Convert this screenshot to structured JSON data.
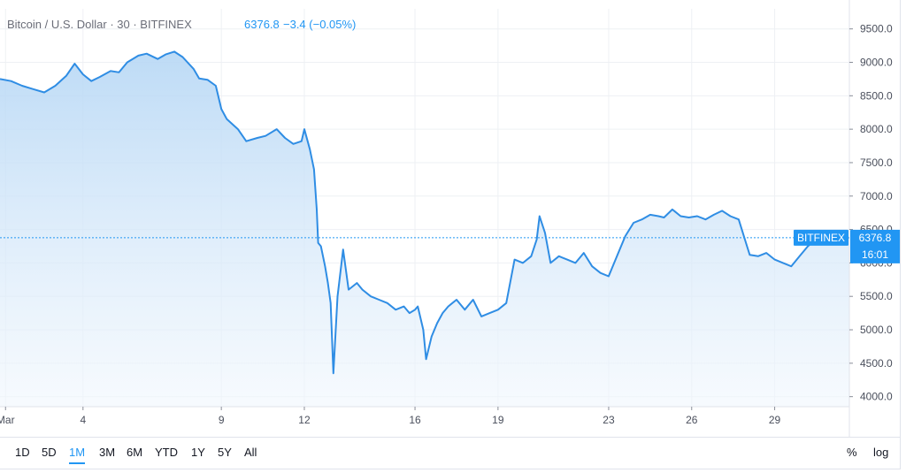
{
  "legend": {
    "symbol": "Bitcoin / U.S. Dollar · 30 · BITFINEX",
    "last_price": "6376.8",
    "change": "−3.4 (−0.05%)"
  },
  "price_labels": {
    "exchange_tag": "BITFINEX",
    "last_price": "6376.8",
    "countdown": "16:01"
  },
  "range_buttons": [
    {
      "label": "1D",
      "active": false
    },
    {
      "label": "5D",
      "active": false
    },
    {
      "label": "1M",
      "active": true
    },
    {
      "label": "3M",
      "active": false
    },
    {
      "label": "6M",
      "active": false
    },
    {
      "label": "YTD",
      "active": false
    },
    {
      "label": "1Y",
      "active": false
    },
    {
      "label": "5Y",
      "active": false
    },
    {
      "label": "All",
      "active": false
    }
  ],
  "scale_buttons": {
    "percent": "%",
    "log": "log"
  },
  "colors": {
    "line": "#2f8de4",
    "area_top": "#b6d7f5",
    "area_bottom": "#f1f7fd",
    "tag": "#2196f3",
    "grid": "#eef0f4"
  },
  "chart_data": {
    "type": "area",
    "title": "Bitcoin / U.S. Dollar · 30 · BITFINEX",
    "xlabel": "",
    "ylabel": "",
    "x_unit": "day of month (March)",
    "ylim": [
      3850,
      9800
    ],
    "xlim": [
      1,
      31.7
    ],
    "y_ticks": [
      4000,
      4500,
      5000,
      5500,
      6000,
      6500,
      7000,
      7500,
      8000,
      8500,
      9000,
      9500
    ],
    "y_tick_labels": [
      "4000.0",
      "4500.0",
      "5000.0",
      "5500.0",
      "6000.0",
      "6500.0",
      "7000.0",
      "7500.0",
      "8000.0",
      "8500.0",
      "9000.0",
      "9500.0"
    ],
    "x_ticks": [
      1.2,
      4,
      9,
      12,
      16,
      19,
      23,
      26,
      29
    ],
    "x_tick_labels": [
      "Mar",
      "4",
      "9",
      "12",
      "16",
      "19",
      "23",
      "26",
      "29"
    ],
    "last_price": 6376.8,
    "grid": true,
    "series": [
      {
        "x": [
          1.0,
          1.4,
          1.8,
          2.2,
          2.6,
          3.0,
          3.4,
          3.7,
          4.0,
          4.3,
          4.6,
          5.0,
          5.3,
          5.6,
          6.0,
          6.3,
          6.7,
          7.0,
          7.3,
          7.6,
          8.0,
          8.2,
          8.5,
          8.8,
          9.0,
          9.2,
          9.6,
          9.9,
          10.3,
          10.6,
          11.0,
          11.3,
          11.6,
          11.9,
          12.0,
          12.2,
          12.35,
          12.45,
          12.5,
          12.6,
          12.75,
          12.85,
          12.95,
          13.05,
          13.2,
          13.4,
          13.6,
          13.9,
          14.1,
          14.4,
          14.7,
          15.0,
          15.3,
          15.6,
          15.8,
          16.0,
          16.1,
          16.3,
          16.4,
          16.6,
          16.8,
          17.0,
          17.2,
          17.5,
          17.8,
          18.1,
          18.4,
          18.7,
          19.0,
          19.3,
          19.6,
          19.9,
          20.2,
          20.4,
          20.5,
          20.7,
          20.9,
          21.2,
          21.5,
          21.8,
          22.1,
          22.4,
          22.7,
          23.0,
          23.3,
          23.6,
          23.9,
          24.2,
          24.5,
          24.8,
          25.0,
          25.3,
          25.6,
          25.9,
          26.2,
          26.5,
          26.8,
          27.1,
          27.4,
          27.7,
          28.0,
          28.1,
          28.4,
          28.7,
          29.0,
          29.3,
          29.6,
          29.9,
          30.2,
          30.5,
          30.8,
          31.1,
          31.4,
          31.7
        ],
        "y": [
          8750,
          8720,
          8650,
          8600,
          8550,
          8650,
          8800,
          8980,
          8820,
          8720,
          8780,
          8870,
          8850,
          9000,
          9100,
          9130,
          9050,
          9120,
          9160,
          9080,
          8900,
          8760,
          8740,
          8650,
          8300,
          8150,
          8000,
          7820,
          7870,
          7900,
          8000,
          7870,
          7780,
          7820,
          8000,
          7700,
          7400,
          6800,
          6300,
          6250,
          5950,
          5700,
          5400,
          4350,
          5500,
          6200,
          5600,
          5700,
          5600,
          5500,
          5450,
          5400,
          5300,
          5350,
          5250,
          5300,
          5350,
          5000,
          4560,
          4900,
          5100,
          5250,
          5350,
          5450,
          5300,
          5450,
          5200,
          5250,
          5300,
          5400,
          6050,
          6000,
          6100,
          6350,
          6700,
          6450,
          6000,
          6100,
          6050,
          6000,
          6150,
          5950,
          5850,
          5800,
          6100,
          6400,
          6600,
          6650,
          6720,
          6700,
          6680,
          6800,
          6700,
          6680,
          6700,
          6650,
          6720,
          6780,
          6700,
          6650,
          6250,
          6120,
          6100,
          6150,
          6050,
          6000,
          5950,
          6100,
          6250,
          6350,
          6450,
          6400,
          6380,
          6377
        ]
      }
    ]
  }
}
